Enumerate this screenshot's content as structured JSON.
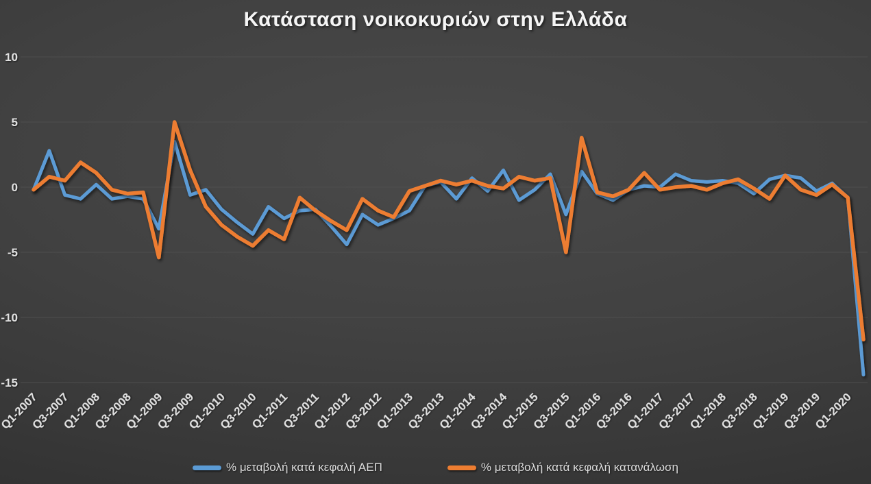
{
  "title": "Κατάσταση νοικοκυριών στην Ελλάδα",
  "colors": {
    "gdp_line": "#5B9BD5",
    "consumption_line": "#ED7D31",
    "gridline": "#4e4e4e",
    "axis_text": "#e2e2e2",
    "background": "#3e3e3e"
  },
  "legend": [
    {
      "label": "% μεταβολή κατά κεφαλή ΑΕΠ",
      "color": "#5B9BD5"
    },
    {
      "label": "% μεταβολή κατά κεφαλή κατανάλωση",
      "color": "#ED7D31"
    }
  ],
  "chart_data": {
    "type": "line",
    "title": "Κατάσταση νοικοκυριών στην Ελλάδα",
    "xlabel": "",
    "ylabel": "",
    "ylim": [
      -15,
      10
    ],
    "yticks": [
      10,
      5,
      0,
      -5,
      -10,
      -15
    ],
    "grid": true,
    "legend_position": "bottom",
    "x_tick_every": 2,
    "x": [
      "Q1-2007",
      "Q2-2007",
      "Q3-2007",
      "Q4-2007",
      "Q1-2008",
      "Q2-2008",
      "Q3-2008",
      "Q4-2008",
      "Q1-2009",
      "Q2-2009",
      "Q3-2009",
      "Q4-2009",
      "Q1-2010",
      "Q2-2010",
      "Q3-2010",
      "Q4-2010",
      "Q1-2011",
      "Q2-2011",
      "Q3-2011",
      "Q4-2011",
      "Q1-2012",
      "Q2-2012",
      "Q3-2012",
      "Q4-2012",
      "Q1-2013",
      "Q2-2013",
      "Q3-2013",
      "Q4-2013",
      "Q1-2014",
      "Q2-2014",
      "Q3-2014",
      "Q4-2014",
      "Q1-2015",
      "Q2-2015",
      "Q3-2015",
      "Q4-2015",
      "Q1-2016",
      "Q2-2016",
      "Q3-2016",
      "Q4-2016",
      "Q1-2017",
      "Q2-2017",
      "Q3-2017",
      "Q4-2017",
      "Q1-2018",
      "Q2-2018",
      "Q3-2018",
      "Q4-2018",
      "Q1-2019",
      "Q2-2019",
      "Q3-2019",
      "Q4-2019",
      "Q1-2020",
      "Q2-2020"
    ],
    "series": [
      {
        "name": "% μεταβολή κατά κεφαλή ΑΕΠ",
        "color": "#5B9BD5",
        "values": [
          -0.2,
          2.8,
          -0.6,
          -0.9,
          0.2,
          -0.9,
          -0.7,
          -0.9,
          -3.2,
          3.5,
          -0.6,
          -0.2,
          -1.7,
          -2.7,
          -3.6,
          -1.5,
          -2.4,
          -1.8,
          -1.7,
          -3.0,
          -4.4,
          -2.1,
          -2.9,
          -2.4,
          -1.8,
          0.1,
          0.4,
          -0.9,
          0.7,
          -0.3,
          1.3,
          -1.0,
          -0.2,
          1.0,
          -2.1,
          1.2,
          -0.5,
          -1.0,
          -0.2,
          0.1,
          0.0,
          1.0,
          0.5,
          0.4,
          0.5,
          0.3,
          -0.5,
          0.6,
          0.9,
          0.7,
          -0.3,
          0.3,
          -0.8,
          -14.4
        ]
      },
      {
        "name": "% μεταβολή κατά κεφαλή κατανάλωση",
        "color": "#ED7D31",
        "values": [
          -0.2,
          0.8,
          0.5,
          1.9,
          1.1,
          -0.2,
          -0.5,
          -0.4,
          -5.4,
          5.0,
          1.3,
          -1.5,
          -2.9,
          -3.8,
          -4.5,
          -3.3,
          -4.0,
          -0.8,
          -1.8,
          -2.6,
          -3.3,
          -0.9,
          -1.8,
          -2.3,
          -0.3,
          0.1,
          0.5,
          0.2,
          0.5,
          0.1,
          -0.1,
          0.8,
          0.5,
          0.7,
          -5.0,
          3.8,
          -0.4,
          -0.7,
          -0.2,
          1.1,
          -0.2,
          0.0,
          0.1,
          -0.2,
          0.3,
          0.6,
          -0.1,
          -0.9,
          0.9,
          -0.2,
          -0.6,
          0.2,
          -0.8,
          -11.7
        ]
      }
    ]
  }
}
